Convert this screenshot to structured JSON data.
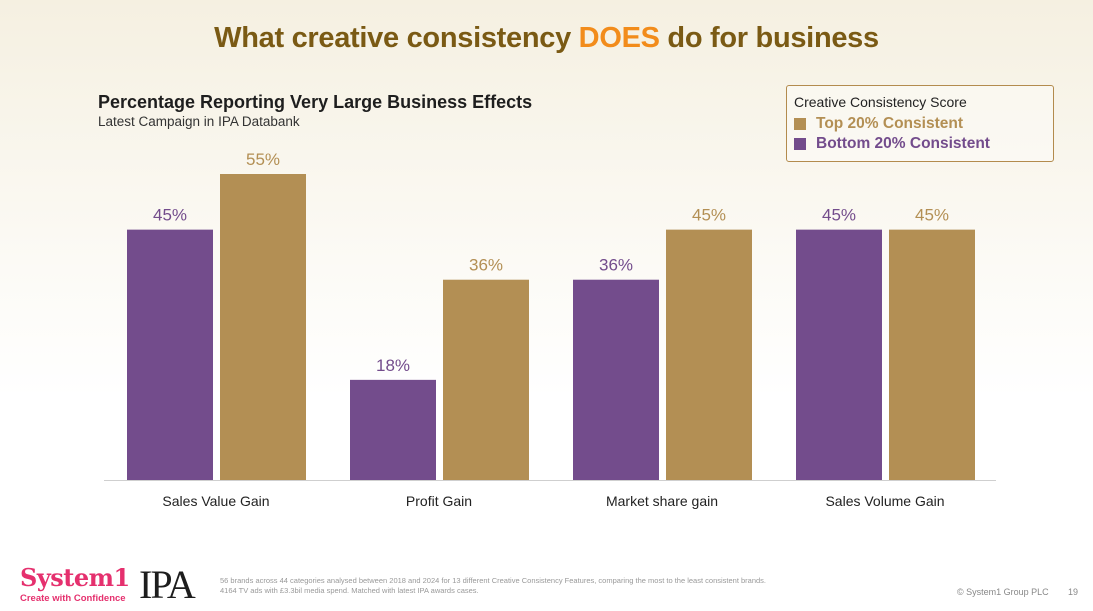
{
  "slide": {
    "title_part1": "What creative consistency ",
    "title_highlight": "DOES",
    "title_part2": " do for business",
    "page_number": "19",
    "copyright": "© System1 Group PLC"
  },
  "chart_data": {
    "type": "bar",
    "title": "Percentage Reporting Very Large Business Effects",
    "subtitle": "Latest Campaign in IPA Databank",
    "categories": [
      "Sales Value Gain",
      "Profit Gain",
      "Market share gain",
      "Sales Volume Gain"
    ],
    "series": [
      {
        "name": "Bottom 20% Consistent",
        "color": "#734c8c",
        "values": [
          45,
          18,
          36,
          45
        ],
        "labels": [
          "45%",
          "18%",
          "36%",
          "45%"
        ]
      },
      {
        "name": "Top 20% Consistent",
        "color": "#b38f54",
        "values": [
          55,
          36,
          45,
          45
        ],
        "labels": [
          "55%",
          "36%",
          "45%",
          "45%"
        ]
      }
    ],
    "ylim": [
      0,
      55
    ],
    "legend": {
      "title": "Creative Consistency Score",
      "position": "top-right",
      "items": [
        {
          "label": "Top 20% Consistent",
          "color": "#b38f54"
        },
        {
          "label": "Bottom 20% Consistent",
          "color": "#734c8c"
        }
      ]
    }
  },
  "footer": {
    "logo_name": "System1",
    "logo_tagline": "Create with Confidence",
    "partner_logo": "IPA",
    "footnote_line1": "56 brands across 44 categories analysed between 2018 and 2024 for 13 different Creative Consistency Features, comparing the most to the least consistent brands.",
    "footnote_line2": "4164 TV ads with £3.3bil media spend. Matched with latest IPA awards cases."
  }
}
